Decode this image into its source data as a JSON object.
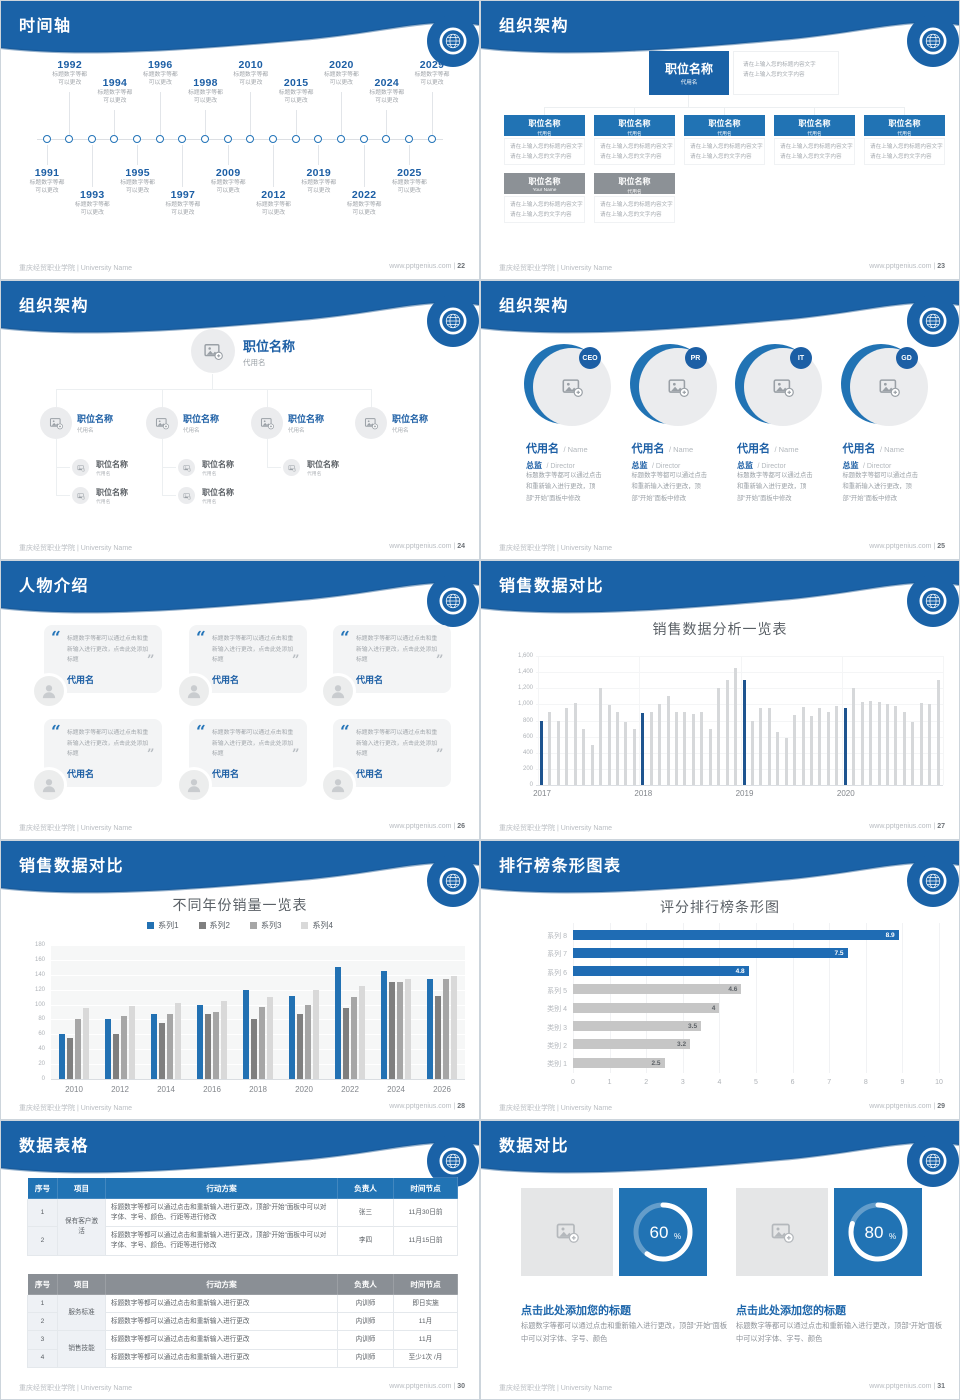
{
  "footer": {
    "org": "重庆经贸职业学院 | University Name",
    "site": "www.pptgenius.com",
    "sep": "|"
  },
  "colors": {
    "header_blue": "#1a62a7",
    "accent_blue": "#2173b4",
    "gray_box": "#8c9196"
  },
  "slide22": {
    "title": "时间轴",
    "page": "22",
    "cap1": "标题数字等都",
    "cap2": "可以更改",
    "years": [
      "1991",
      "1992",
      "1993",
      "1994",
      "1995",
      "1996",
      "1997",
      "1998",
      "2009",
      "2010",
      "2012",
      "2015",
      "2019",
      "2020",
      "2022",
      "2024",
      "2025",
      "2029"
    ]
  },
  "slide23": {
    "title": "组织架构",
    "page": "23",
    "box_title": "职位名称",
    "box_sub": "代用名",
    "gray_sub1": "Your Name",
    "top_note1": "请在上输入您的标题内容文字",
    "top_note2": "请在上输入您的文字内容",
    "desc1": "请在上输入您的标题内容文字",
    "desc2": "请在上输入您的文字内容"
  },
  "slide24": {
    "title": "组织架构",
    "page": "24",
    "node_title": "职位名称",
    "node_sub": "代用名"
  },
  "slide25": {
    "title": "组织架构",
    "page": "25",
    "badges": [
      "CEO",
      "PR",
      "IT",
      "GD"
    ],
    "name": "代用名",
    "name_en": "/ Name",
    "role": "总监",
    "role_en": "/ Director",
    "desc": "标题数字等都可以通过点击和重新输入进行更改，顶部“开始”面板中修改"
  },
  "slide26": {
    "title": "人物介绍",
    "page": "26",
    "open_quote": "“",
    "close_quote": "”",
    "quote": "标题数字等都可以通过点击和重新输入进行更改，点击此处添加标题",
    "name": "代用名"
  },
  "slide27": {
    "title": "销售数据对比",
    "page": "27",
    "chart_title": "销售数据分析一览表"
  },
  "slide28": {
    "title": "销售数据对比",
    "page": "28",
    "chart_title": "不同年份销量一览表"
  },
  "slide29": {
    "title": "排行榜条形图表",
    "page": "29",
    "chart_title": "评分排行榜条形图"
  },
  "slide30": {
    "title": "数据表格",
    "page": "30",
    "headers": [
      "序号",
      "项目",
      "行动方案",
      "负责人",
      "时间节点"
    ],
    "table1": {
      "project": "保有客户激活",
      "rows": [
        {
          "no": "1",
          "plan": "标题数字等都可以通过点击和重新输入进行更改，顶部“开始”面板中可以对字体、字号、颜色、行距等进行修改",
          "owner": "张三",
          "time": "11月30日前"
        },
        {
          "no": "2",
          "plan": "标题数字等都可以通过点击和重新输入进行更改，顶部“开始”面板中可以对字体、字号、颜色、行距等进行修改",
          "owner": "李四",
          "time": "11月15日前"
        }
      ]
    },
    "table2": {
      "projects": [
        "服务标准",
        "销售技能"
      ],
      "rows": [
        {
          "no": "1",
          "plan": "标题数字等都可以通过点击和重新输入进行更改",
          "owner": "内训师",
          "time": "即日实施"
        },
        {
          "no": "2",
          "plan": "标题数字等都可以通过点击和重新输入进行更改",
          "owner": "内训师",
          "time": "11月"
        },
        {
          "no": "3",
          "plan": "标题数字等都可以通过点击和重新输入进行更改",
          "owner": "内训师",
          "time": "11月"
        },
        {
          "no": "4",
          "plan": "标题数字等都可以通过点击和重新输入进行更改",
          "owner": "内训师",
          "time": "至少1次 /月"
        }
      ]
    }
  },
  "slide31": {
    "title": "数据对比",
    "page": "31",
    "items": [
      {
        "percent": 60
      },
      {
        "percent": 80
      }
    ],
    "item_title": "点击此处添加您的标题",
    "item_desc": "标题数字等都可以通过点击和重新输入进行更改，顶部“开始”面板中可以对字体、字号、颜色"
  },
  "chart_data": [
    {
      "slide": 27,
      "type": "bar",
      "title": "销售数据分析一览表",
      "x_groups": [
        "2017",
        "2018",
        "2019",
        "2020"
      ],
      "values": [
        800,
        900,
        800,
        950,
        1020,
        700,
        500,
        1200,
        990,
        900,
        780,
        700,
        890,
        900,
        1000,
        1100,
        900,
        900,
        880,
        900,
        700,
        1200,
        1300,
        1450,
        1300,
        800,
        950,
        960,
        660,
        580,
        870,
        970,
        860,
        950,
        900,
        980,
        950,
        1200,
        1030,
        1040,
        1030,
        1000,
        980,
        900,
        780,
        1020,
        1010,
        1300
      ],
      "highlight_indices": [
        0,
        12,
        24,
        36
      ],
      "ylim": [
        0,
        1600
      ],
      "ytick_step": 200,
      "bar_color": "#d6d8da",
      "highlight_color": "#1e548f",
      "grid": true,
      "legend": "none"
    },
    {
      "slide": 28,
      "type": "bar",
      "title": "不同年份销量一览表",
      "categories": [
        "2010",
        "2012",
        "2014",
        "2016",
        "2018",
        "2020",
        "2022",
        "2024",
        "2026"
      ],
      "series": [
        {
          "name": "系列1",
          "color": "#2271b3",
          "values": [
            60,
            80,
            88,
            100,
            120,
            112,
            150,
            145,
            135
          ]
        },
        {
          "name": "系列2",
          "color": "#7f7f7f",
          "values": [
            55,
            60,
            75,
            88,
            80,
            88,
            95,
            130,
            112
          ]
        },
        {
          "name": "系列3",
          "color": "#a6a6a6",
          "values": [
            80,
            85,
            87,
            90,
            97,
            100,
            110,
            130,
            135
          ]
        },
        {
          "name": "系列4",
          "color": "#d9d9d9",
          "values": [
            95,
            98,
            102,
            105,
            110,
            120,
            125,
            135,
            138
          ]
        }
      ],
      "ylim": [
        0,
        180
      ],
      "ytick_step": 20,
      "grid": true,
      "legend": "top"
    },
    {
      "slide": 29,
      "type": "bar-horizontal",
      "title": "评分排行榜条形图",
      "categories": [
        "系列 8",
        "系列 7",
        "系列 6",
        "系列 5",
        "类别 4",
        "类别 3",
        "类别 2",
        "类别 1"
      ],
      "values": [
        8.9,
        7.5,
        4.8,
        4.6,
        4,
        3.5,
        3.2,
        2.5
      ],
      "colors": [
        "#1f6cb4",
        "#1f6cb4",
        "#1f6cb4",
        "#c6c6c6",
        "#c6c6c6",
        "#c6c6c6",
        "#c6c6c6",
        "#c6c6c6"
      ],
      "xlim": [
        0,
        10
      ],
      "xtick_step": 1,
      "grid": true,
      "legend": "none"
    }
  ]
}
